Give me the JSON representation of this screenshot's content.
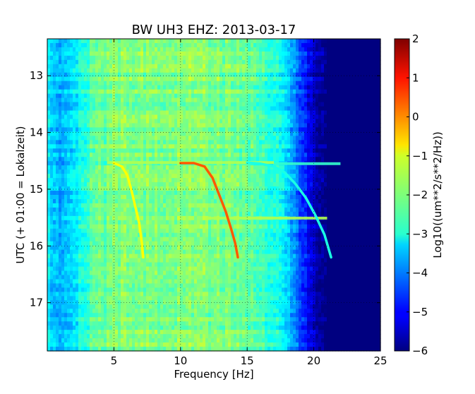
{
  "chart_data": {
    "type": "heatmap",
    "title": "BW UH3 EHZ: 2013-03-17",
    "xlabel": "Frequency [Hz]",
    "ylabel": "UTC (+ 01:00 = Lokalzeit)",
    "colorbar_label": "Log10((um**2/s**2/Hz))",
    "colormap": "jet",
    "xlim": [
      0,
      25
    ],
    "ylim": [
      12.35,
      17.85
    ],
    "y_inverted": true,
    "clim": [
      -6,
      2
    ],
    "x_ticks": [
      5,
      10,
      15,
      20,
      25
    ],
    "x_tick_labels": [
      "5",
      "10",
      "15",
      "20",
      "25"
    ],
    "y_ticks": [
      13,
      14,
      15,
      16,
      17
    ],
    "y_tick_labels": [
      "13",
      "14",
      "15",
      "16",
      "17"
    ],
    "colorbar_ticks": [
      2,
      1,
      0,
      -1,
      -2,
      -3,
      -4,
      -5,
      -6
    ],
    "colorbar_tick_labels": [
      "2",
      "1",
      "0",
      "−1",
      "−2",
      "−3",
      "−4",
      "−5",
      "−6"
    ],
    "grid": true,
    "background_profile": {
      "frequency": [
        0,
        1,
        2,
        3,
        4,
        5,
        6,
        8,
        10,
        12,
        14,
        15,
        16,
        17,
        17.5,
        18,
        18.5,
        19,
        19.5,
        20,
        20.5,
        21,
        25
      ],
      "log_power": [
        -3.0,
        -3.7,
        -3.3,
        -2.5,
        -2.2,
        -2.0,
        -2.0,
        -2.0,
        -1.9,
        -2.0,
        -2.1,
        -2.2,
        -2.4,
        -2.7,
        -3.0,
        -3.4,
        -3.9,
        -4.4,
        -4.9,
        -5.4,
        -5.8,
        -6.0,
        -6.0
      ]
    },
    "series": [
      {
        "values": [
          [
            5.0,
            14.54
          ],
          [
            5.6,
            14.6
          ],
          [
            6.0,
            14.75
          ],
          [
            6.3,
            15.0
          ],
          [
            6.6,
            15.3
          ],
          [
            6.9,
            15.6
          ],
          [
            7.1,
            15.95
          ],
          [
            7.2,
            16.2
          ]
        ],
        "log_power": -1.0
      },
      {
        "values": [
          [
            10.0,
            14.54
          ],
          [
            11.0,
            14.54
          ],
          [
            11.8,
            14.6
          ],
          [
            12.4,
            14.8
          ],
          [
            12.9,
            15.1
          ],
          [
            13.4,
            15.4
          ],
          [
            13.8,
            15.7
          ],
          [
            14.1,
            15.95
          ],
          [
            14.3,
            16.2
          ]
        ],
        "log_power": 0.3
      },
      {
        "values": [
          [
            15.0,
            14.53
          ],
          [
            16.0,
            14.55
          ],
          [
            17.0,
            14.6
          ],
          [
            17.8,
            14.7
          ],
          [
            18.6,
            14.9
          ],
          [
            19.4,
            15.15
          ],
          [
            20.1,
            15.45
          ],
          [
            20.8,
            15.8
          ],
          [
            21.3,
            16.2
          ]
        ],
        "log_power": -2.8
      }
    ],
    "bands": [
      {
        "frequency": [
          4.5,
          17.0
        ],
        "time": 14.53,
        "log_power": -1.6
      },
      {
        "frequency": [
          17.0,
          22.0
        ],
        "time": 14.55,
        "log_power": -2.6
      },
      {
        "frequency": [
          12.0,
          21.0
        ],
        "time": 15.51,
        "log_power": -1.6
      }
    ]
  }
}
